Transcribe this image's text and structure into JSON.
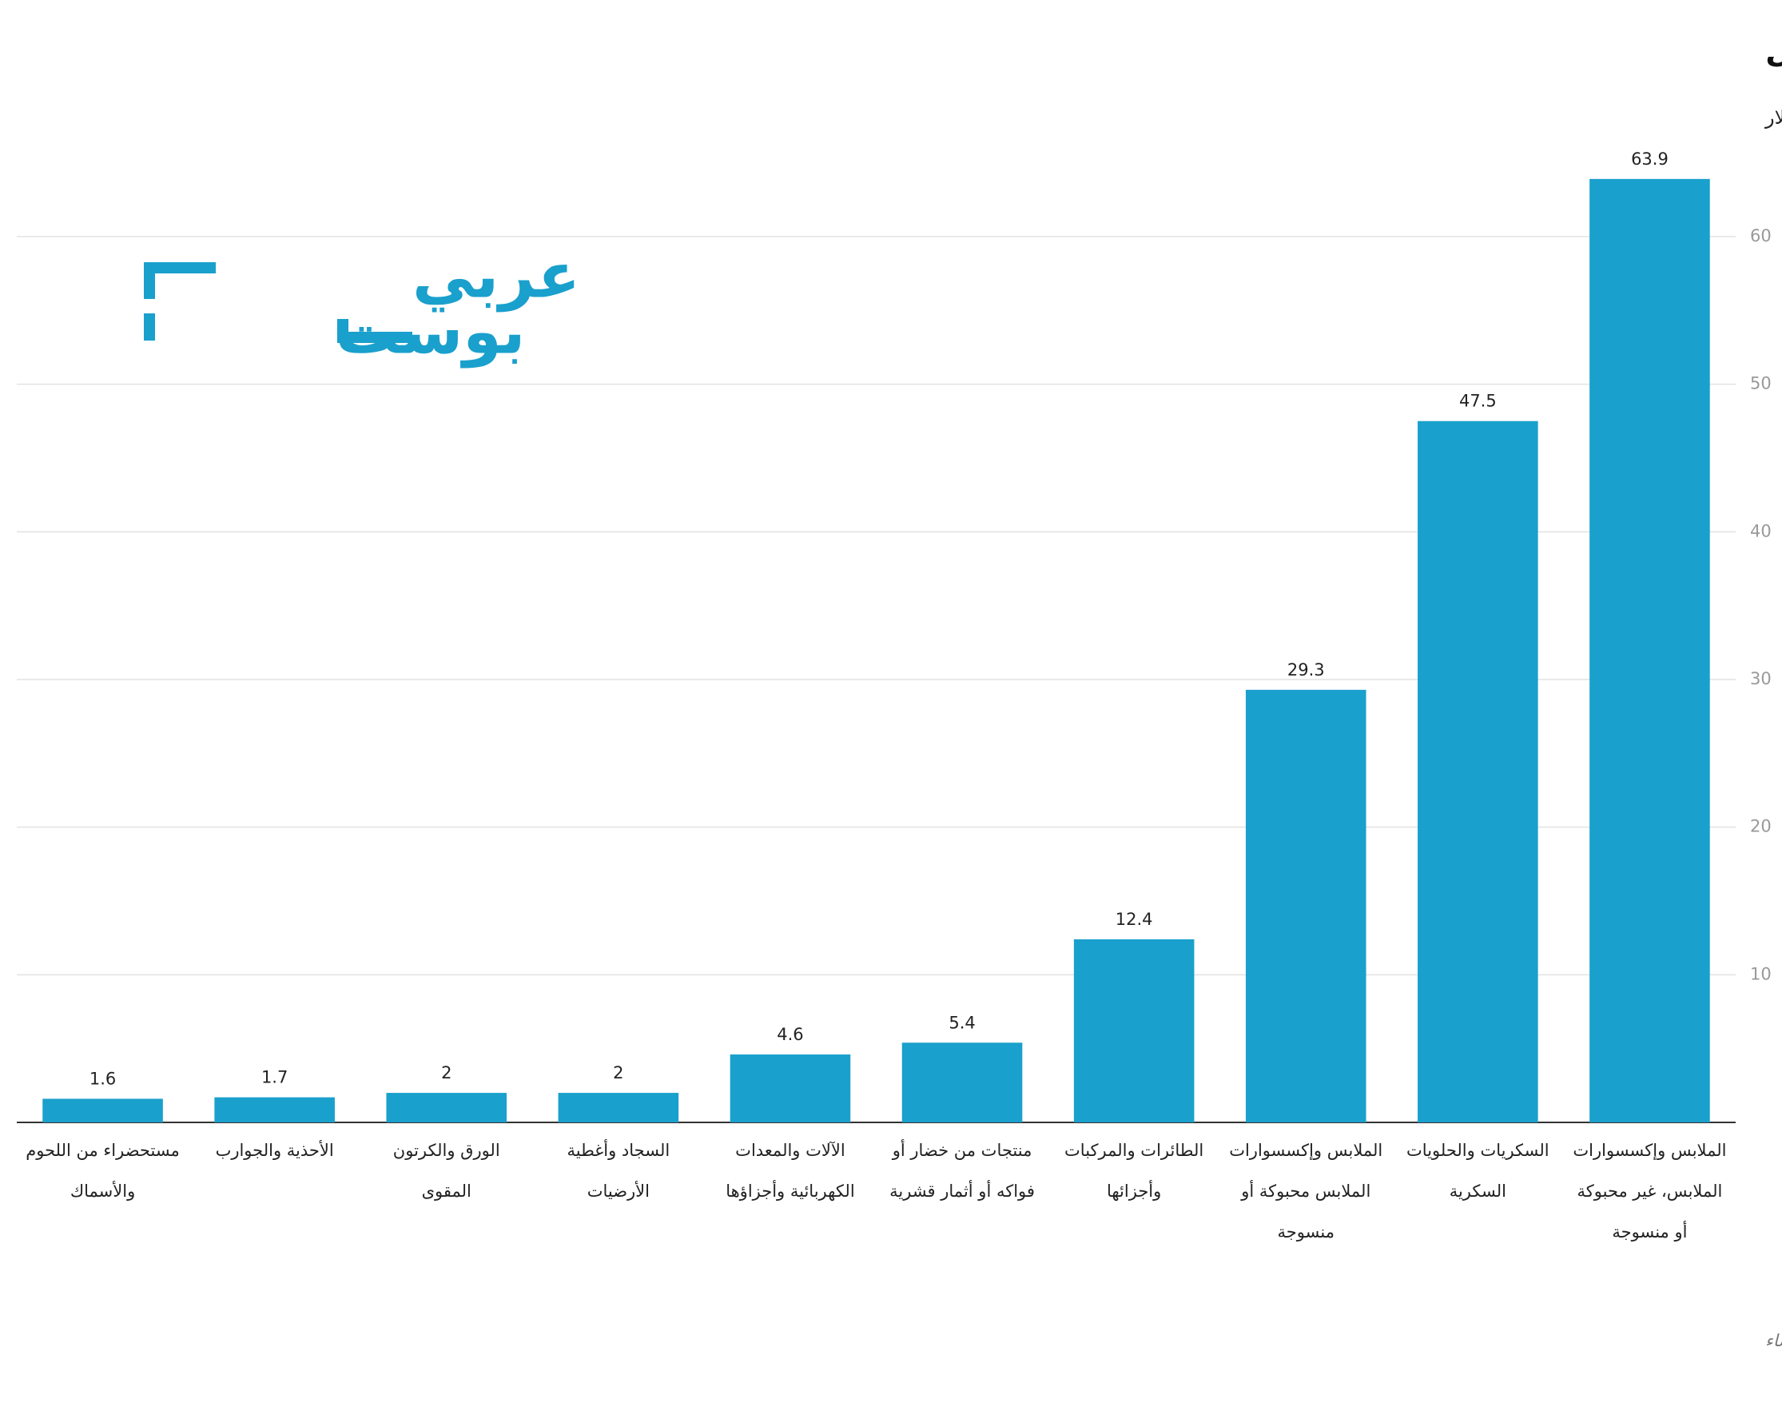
{
  "chart_data": {
    "type": "bar",
    "title": "قطاعات الإنتاج الأساسية التي تندرج تحتها صادرات المنتجات المغربية (محلية المنشأ) إلى إسرائيل",
    "subtitle": "البيانات تغطي الفترة ما بين أكتوبر 2023 وفبراير 2025 / القيمة: بالمليون دولار",
    "source": "المصدر: الجهاز المركزي الإسرائيلي للإحصاء",
    "logo": [
      "عربي",
      "بوست"
    ],
    "categories": [
      "مستحضراء من اللحوم والأسماك",
      "الأحذية والجوارب",
      "الورق والكرتون المقوى",
      "السجاد وأغطية الأرضيات",
      "الآلات والمعدات الكهربائية وأجزاؤها",
      "منتجات من خضار أو فواكه أو أثمار قشرية",
      "الطائرات والمركبات وأجزائها",
      "الملابس وإكسسوارات الملابس محبوكة أو منسوجة",
      "السكريات والحلويات السكرية",
      "الملابس وإكسسوارات الملابس، غير محبوكة أو منسوجة"
    ],
    "values": [
      1.6,
      1.7,
      2,
      2,
      4.6,
      5.4,
      12.4,
      29.3,
      47.5,
      63.9
    ],
    "color": "#1aa0cc",
    "ylim": [
      0,
      64
    ],
    "yticks": [
      10,
      20,
      30,
      40,
      50,
      60
    ],
    "grid": true
  }
}
